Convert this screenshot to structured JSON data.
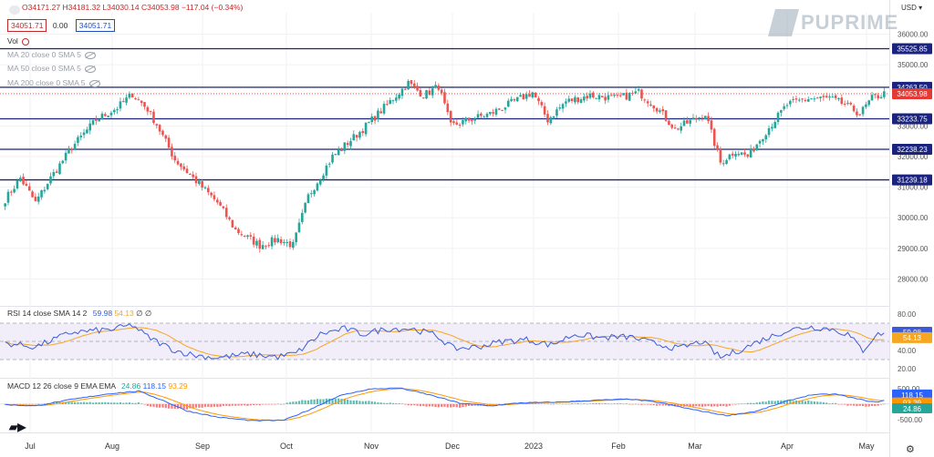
{
  "header": {
    "ohlc": [
      {
        "k": "O",
        "v": "34171.27"
      },
      {
        "k": "H",
        "v": "34181.32"
      },
      {
        "k": "L",
        "v": "34030.14"
      },
      {
        "k": "C",
        "v": "34053.98"
      }
    ],
    "change": "−117.04 (−0.34%)",
    "bid": "34051.71",
    "spread": "0.00",
    "ask": "34051.71",
    "currency": "USD",
    "logo_text": "PUPRIME"
  },
  "indicators": {
    "vol": "Vol",
    "ma20": "MA 20 close 0 SMA 5",
    "ma50": "MA 50 close 0 SMA 5",
    "ma200": "MA 200 close 0 SMA 5",
    "rsi_label": "RSI 14 close SMA 14 2",
    "rsi_v1": "59.98",
    "rsi_v2": "54.13",
    "rsi_v3": "∅ ∅",
    "macd_label": "MACD 12 26 close 9 EMA EMA",
    "macd_hist": "24.86",
    "macd_line": "118.15",
    "macd_signal": "93.29"
  },
  "colors": {
    "up": "#26a69a",
    "down": "#ef5350",
    "level": "#1a237e",
    "rsi": "#3b5bdb",
    "rsi_ma": "#f5a623",
    "macd": "#2962ff",
    "signal": "#ff9800",
    "price_tag": "#e53935"
  },
  "chart_data": {
    "type": "candlestick",
    "instrument_currency": "USD",
    "x_ticks": [
      "Jul",
      "Aug",
      "Sep",
      "Oct",
      "Nov",
      "Dec",
      "2023",
      "Feb",
      "Mar",
      "Apr",
      "May"
    ],
    "price_axis": {
      "ylim": [
        27300,
        36700
      ],
      "ticks": [
        28000,
        29000,
        30000,
        31000,
        32000,
        33000,
        34000,
        35000,
        36000
      ]
    },
    "levels": [
      35525.85,
      34263.5,
      33233.75,
      32238.23,
      31239.18
    ],
    "last_price": 34053.98,
    "close_anchors": [
      {
        "i": 0,
        "y": 30600
      },
      {
        "i": 5,
        "y": 31300
      },
      {
        "i": 10,
        "y": 30500
      },
      {
        "i": 15,
        "y": 31300
      },
      {
        "i": 22,
        "y": 32300
      },
      {
        "i": 30,
        "y": 33200
      },
      {
        "i": 37,
        "y": 33600
      },
      {
        "i": 42,
        "y": 34050
      },
      {
        "i": 47,
        "y": 33550
      },
      {
        "i": 50,
        "y": 33050
      },
      {
        "i": 56,
        "y": 31900
      },
      {
        "i": 63,
        "y": 31200
      },
      {
        "i": 70,
        "y": 30500
      },
      {
        "i": 76,
        "y": 29600
      },
      {
        "i": 84,
        "y": 29100
      },
      {
        "i": 90,
        "y": 29300
      },
      {
        "i": 95,
        "y": 29100
      },
      {
        "i": 100,
        "y": 30700
      },
      {
        "i": 108,
        "y": 32000
      },
      {
        "i": 118,
        "y": 32900
      },
      {
        "i": 126,
        "y": 33700
      },
      {
        "i": 133,
        "y": 34400
      },
      {
        "i": 138,
        "y": 34000
      },
      {
        "i": 143,
        "y": 34300
      },
      {
        "i": 147,
        "y": 33000
      },
      {
        "i": 153,
        "y": 33200
      },
      {
        "i": 160,
        "y": 33400
      },
      {
        "i": 166,
        "y": 33700
      },
      {
        "i": 174,
        "y": 34100
      },
      {
        "i": 179,
        "y": 33200
      },
      {
        "i": 185,
        "y": 33800
      },
      {
        "i": 193,
        "y": 34000
      },
      {
        "i": 202,
        "y": 33900
      },
      {
        "i": 209,
        "y": 34100
      },
      {
        "i": 215,
        "y": 33600
      },
      {
        "i": 221,
        "y": 32900
      },
      {
        "i": 227,
        "y": 33200
      },
      {
        "i": 231,
        "y": 33400
      },
      {
        "i": 236,
        "y": 31800
      },
      {
        "i": 241,
        "y": 32200
      },
      {
        "i": 245,
        "y": 32000
      },
      {
        "i": 250,
        "y": 32700
      },
      {
        "i": 258,
        "y": 33700
      },
      {
        "i": 265,
        "y": 33900
      },
      {
        "i": 272,
        "y": 33900
      },
      {
        "i": 277,
        "y": 33700
      },
      {
        "i": 282,
        "y": 33400
      },
      {
        "i": 286,
        "y": 33900
      },
      {
        "i": 290,
        "y": 34054
      }
    ],
    "rsi": {
      "ylim": [
        15,
        85
      ],
      "ticks": [
        20,
        40,
        60,
        80
      ],
      "band": [
        30,
        70
      ],
      "mid": 50,
      "anchors": [
        {
          "i": 0,
          "y": 48
        },
        {
          "i": 10,
          "y": 44
        },
        {
          "i": 22,
          "y": 60
        },
        {
          "i": 35,
          "y": 63
        },
        {
          "i": 42,
          "y": 68
        },
        {
          "i": 47,
          "y": 55
        },
        {
          "i": 56,
          "y": 40
        },
        {
          "i": 62,
          "y": 35
        },
        {
          "i": 70,
          "y": 32
        },
        {
          "i": 80,
          "y": 36
        },
        {
          "i": 90,
          "y": 33
        },
        {
          "i": 96,
          "y": 37
        },
        {
          "i": 104,
          "y": 58
        },
        {
          "i": 112,
          "y": 64
        },
        {
          "i": 118,
          "y": 58
        },
        {
          "i": 126,
          "y": 64
        },
        {
          "i": 134,
          "y": 64
        },
        {
          "i": 142,
          "y": 57
        },
        {
          "i": 148,
          "y": 42
        },
        {
          "i": 156,
          "y": 44
        },
        {
          "i": 164,
          "y": 50
        },
        {
          "i": 172,
          "y": 52
        },
        {
          "i": 180,
          "y": 46
        },
        {
          "i": 188,
          "y": 58
        },
        {
          "i": 196,
          "y": 54
        },
        {
          "i": 206,
          "y": 55
        },
        {
          "i": 214,
          "y": 48
        },
        {
          "i": 222,
          "y": 42
        },
        {
          "i": 230,
          "y": 50
        },
        {
          "i": 236,
          "y": 32
        },
        {
          "i": 242,
          "y": 40
        },
        {
          "i": 250,
          "y": 52
        },
        {
          "i": 258,
          "y": 62
        },
        {
          "i": 265,
          "y": 66
        },
        {
          "i": 272,
          "y": 64
        },
        {
          "i": 278,
          "y": 58
        },
        {
          "i": 283,
          "y": 40
        },
        {
          "i": 287,
          "y": 56
        },
        {
          "i": 290,
          "y": 59.98
        }
      ]
    },
    "macd": {
      "ylim": [
        -620,
        700
      ],
      "ticks": [
        -500,
        0,
        500
      ],
      "anchors": [
        {
          "i": 0,
          "y": -20
        },
        {
          "i": 10,
          "y": -60
        },
        {
          "i": 22,
          "y": 150
        },
        {
          "i": 34,
          "y": 330
        },
        {
          "i": 44,
          "y": 420
        },
        {
          "i": 52,
          "y": 120
        },
        {
          "i": 60,
          "y": -220
        },
        {
          "i": 70,
          "y": -420
        },
        {
          "i": 82,
          "y": -540
        },
        {
          "i": 92,
          "y": -520
        },
        {
          "i": 100,
          "y": -200
        },
        {
          "i": 110,
          "y": 260
        },
        {
          "i": 120,
          "y": 480
        },
        {
          "i": 130,
          "y": 520
        },
        {
          "i": 140,
          "y": 300
        },
        {
          "i": 150,
          "y": 30
        },
        {
          "i": 160,
          "y": -60
        },
        {
          "i": 170,
          "y": 40
        },
        {
          "i": 182,
          "y": 60
        },
        {
          "i": 194,
          "y": 120
        },
        {
          "i": 206,
          "y": 160
        },
        {
          "i": 216,
          "y": 50
        },
        {
          "i": 226,
          "y": -160
        },
        {
          "i": 238,
          "y": -370
        },
        {
          "i": 248,
          "y": -230
        },
        {
          "i": 258,
          "y": 100
        },
        {
          "i": 266,
          "y": 300
        },
        {
          "i": 274,
          "y": 320
        },
        {
          "i": 282,
          "y": 150
        },
        {
          "i": 287,
          "y": 60
        },
        {
          "i": 290,
          "y": 118.15
        }
      ]
    },
    "price_labels": [
      {
        "id": "l35525",
        "text": "35525.85",
        "y": 35525.85,
        "bg": "#1a237e"
      },
      {
        "id": "l34263",
        "text": "34263.50",
        "y": 34263.5,
        "bg": "#1a237e"
      },
      {
        "id": "lprice",
        "text": "34053.98",
        "y": 34053.98,
        "bg": "#e53935"
      },
      {
        "id": "l33233",
        "text": "33233.75",
        "y": 33233.75,
        "bg": "#1a237e"
      },
      {
        "id": "l32238",
        "text": "32238.23",
        "y": 32238.23,
        "bg": "#1a237e"
      },
      {
        "id": "l31239",
        "text": "31239.18",
        "y": 31239.18,
        "bg": "#1a237e"
      }
    ],
    "rsi_labels": [
      {
        "text": "59.98",
        "y": 59.98,
        "bg": "#3b5bdb"
      },
      {
        "text": "54.13",
        "y": 54.13,
        "bg": "#f5a623"
      }
    ],
    "macd_labels": [
      {
        "text": "118.15",
        "y": 118.15,
        "bg": "#2962ff"
      },
      {
        "text": "93.29",
        "y": 93.29,
        "bg": "#ff9800"
      },
      {
        "text": "24.86",
        "y": 24.86,
        "bg": "#26a69a"
      }
    ]
  }
}
